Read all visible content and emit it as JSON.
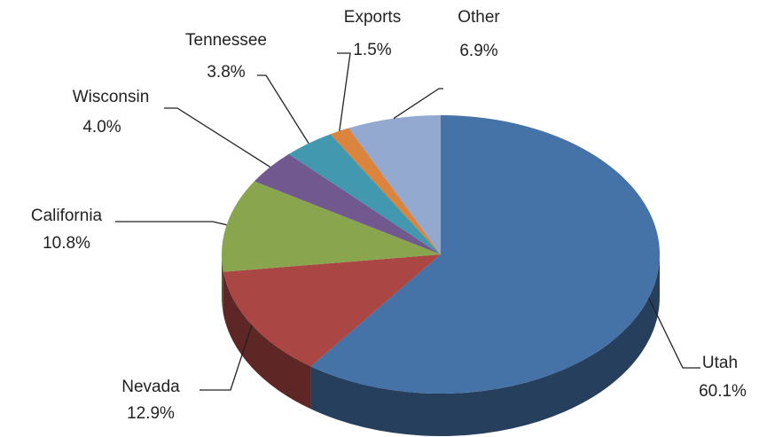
{
  "chart_data": {
    "type": "pie",
    "categories": [
      "Utah",
      "Nevada",
      "California",
      "Wisconsin",
      "Tennessee",
      "Exports",
      "Other"
    ],
    "values": [
      60.1,
      12.9,
      10.8,
      4.0,
      3.8,
      1.5,
      6.9
    ],
    "value_labels": [
      "60.1%",
      "12.9%",
      "10.8%",
      "4.0%",
      "3.8%",
      "1.5%",
      "6.9%"
    ],
    "colors": [
      "#4572a7",
      "#aa4643",
      "#89a54e",
      "#71588f",
      "#4198af",
      "#db843d",
      "#93a9cf"
    ]
  }
}
